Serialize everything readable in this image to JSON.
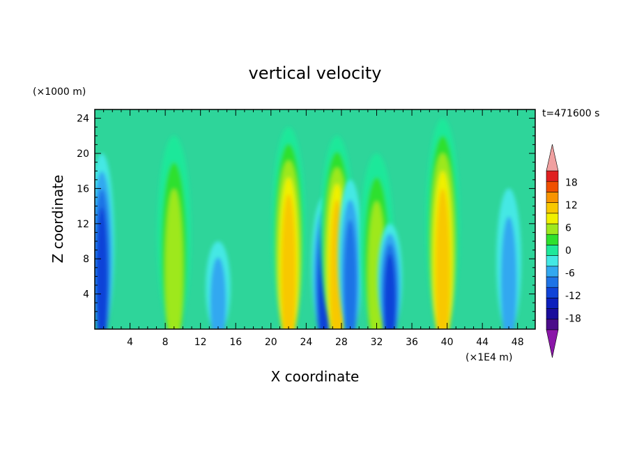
{
  "chart_data": {
    "type": "heatmap",
    "title": "vertical velocity",
    "xlabel": "X coordinate",
    "ylabel": "Z coordinate",
    "x_unit": "(×1E4 m)",
    "y_unit": "(×1000 m)",
    "time_label": "t=471600 s",
    "xlim": [
      0,
      50
    ],
    "ylim": [
      0,
      25
    ],
    "x_ticks": [
      4,
      8,
      12,
      16,
      20,
      24,
      28,
      32,
      36,
      40,
      44,
      48
    ],
    "y_ticks": [
      4,
      8,
      12,
      16,
      20,
      24
    ],
    "colorbar": {
      "levels": [
        -21,
        -18,
        -15,
        -12,
        -9,
        -6,
        -3,
        0,
        3,
        6,
        9,
        12,
        15,
        18,
        21
      ],
      "labeled_values": [
        18,
        12,
        6,
        0,
        -6,
        -12,
        -18
      ],
      "colors": [
        "#4b0c8a",
        "#1a0c9c",
        "#0d1fbd",
        "#1043d8",
        "#1e73e6",
        "#32a8f0",
        "#44e8e4",
        "#1fe89a",
        "#2ee02e",
        "#9ee81e",
        "#f0f000",
        "#f8c800",
        "#f89400",
        "#f05000",
        "#e02020"
      ],
      "under_color": "#8a16a8",
      "over_color": "#f0a0a0"
    },
    "features": [
      {
        "x": 0.8,
        "z_top": 20,
        "value": -12
      },
      {
        "x": 9.0,
        "z_top": 22,
        "value": 8
      },
      {
        "x": 14.0,
        "z_top": 10,
        "value": -6
      },
      {
        "x": 22.0,
        "z_top": 23,
        "value": 14
      },
      {
        "x": 26.0,
        "z_top": 15,
        "value": -12
      },
      {
        "x": 27.5,
        "z_top": 22,
        "value": 15
      },
      {
        "x": 29.0,
        "z_top": 17,
        "value": -8
      },
      {
        "x": 32.0,
        "z_top": 20,
        "value": 10
      },
      {
        "x": 33.5,
        "z_top": 12,
        "value": -12
      },
      {
        "x": 39.5,
        "z_top": 24,
        "value": 16
      },
      {
        "x": 47.0,
        "z_top": 16,
        "value": -6
      }
    ]
  }
}
